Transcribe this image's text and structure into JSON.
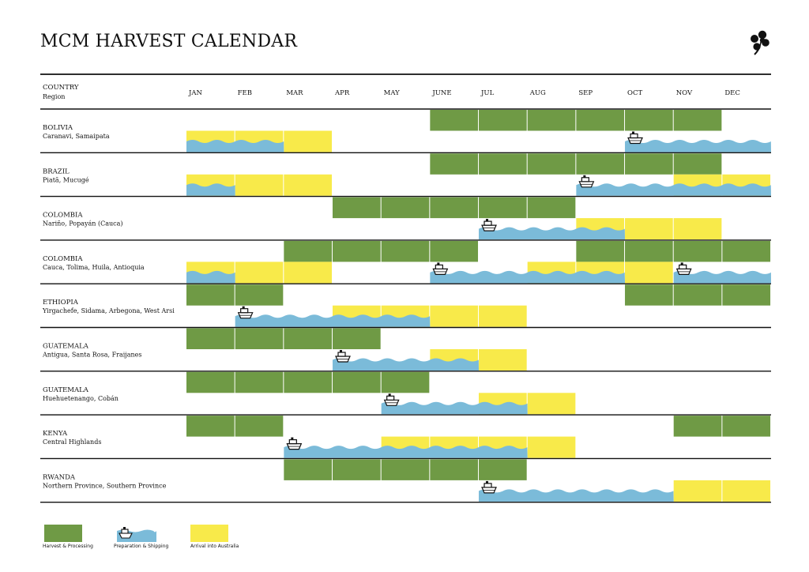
{
  "title": "MCM HARVEST CALENDAR",
  "header": {
    "country_label": "COUNTRY",
    "region_label": "Region"
  },
  "months": [
    "JAN",
    "FEB",
    "MAR",
    "APR",
    "MAY",
    "JUNE",
    "JUL",
    "AUG",
    "SEP",
    "OCT",
    "NOV",
    "DEC"
  ],
  "colors": {
    "harvest": "#6f9a45",
    "shipping": "#7bbbd9",
    "arrival": "#f8ea4a"
  },
  "legend": [
    {
      "key": "harvest",
      "label": "Harvest & Processing"
    },
    {
      "key": "shipping",
      "label": "Preparation & Shipping"
    },
    {
      "key": "arrival",
      "label": "Arrival into Australia"
    }
  ],
  "chart_data": {
    "type": "gantt",
    "title": "MCM HARVEST CALENDAR",
    "x_unit": "month",
    "rows": [
      {
        "country": "BOLIVIA",
        "region": "Caranavi, Samaipata",
        "harvest": [
          {
            "start": "JUNE",
            "end": "NOV"
          }
        ],
        "arrival": [
          {
            "start": "JAN",
            "end": "MAR"
          }
        ],
        "shipping": [
          {
            "start": "OCT",
            "end": "DEC",
            "ship": true
          },
          {
            "start": "JAN",
            "end": "FEB",
            "ship": false
          }
        ]
      },
      {
        "country": "BRAZIL",
        "region": "Piatã, Mucugé",
        "harvest": [
          {
            "start": "JUNE",
            "end": "NOV"
          }
        ],
        "arrival": [
          {
            "start": "NOV",
            "end": "DEC"
          },
          {
            "start": "JAN",
            "end": "MAR"
          }
        ],
        "shipping": [
          {
            "start": "SEP",
            "end": "DEC",
            "ship": true
          },
          {
            "start": "JAN",
            "end": "JAN",
            "ship": false
          }
        ]
      },
      {
        "country": "COLOMBIA",
        "region": "Nariño, Popayán (Cauca)",
        "harvest": [
          {
            "start": "APR",
            "end": "AUG"
          }
        ],
        "arrival": [
          {
            "start": "SEP",
            "end": "NOV"
          }
        ],
        "shipping": [
          {
            "start": "JUL",
            "end": "SEP",
            "ship": true
          }
        ]
      },
      {
        "country": "COLOMBIA",
        "region": "Cauca, Tolima, Huila, Antioquia",
        "harvest": [
          {
            "start": "MAR",
            "end": "JUNE"
          },
          {
            "start": "SEP",
            "end": "DEC"
          }
        ],
        "arrival": [
          {
            "start": "AUG",
            "end": "OCT"
          },
          {
            "start": "JAN",
            "end": "MAR"
          }
        ],
        "shipping": [
          {
            "start": "JUNE",
            "end": "SEP",
            "ship": true
          },
          {
            "start": "NOV",
            "end": "DEC",
            "ship": true
          },
          {
            "start": "JAN",
            "end": "JAN",
            "ship": false
          }
        ]
      },
      {
        "country": "ETHIOPIA",
        "region": "Yirgachefe, Sidama, Arbegona, West Arsi",
        "harvest": [
          {
            "start": "OCT",
            "end": "DEC"
          },
          {
            "start": "JAN",
            "end": "FEB"
          }
        ],
        "arrival": [
          {
            "start": "APR",
            "end": "JUL"
          }
        ],
        "shipping": [
          {
            "start": "FEB",
            "end": "MAY",
            "ship": true
          }
        ]
      },
      {
        "country": "GUATEMALA",
        "region": "Antigua, Santa Rosa, Fraijanes",
        "harvest": [
          {
            "start": "JAN",
            "end": "APR"
          }
        ],
        "arrival": [
          {
            "start": "JUNE",
            "end": "JUL"
          }
        ],
        "shipping": [
          {
            "start": "APR",
            "end": "JUNE",
            "ship": true
          }
        ]
      },
      {
        "country": "GUATEMALA",
        "region": "Huehuetenango, Cobán",
        "harvest": [
          {
            "start": "JAN",
            "end": "MAY"
          }
        ],
        "arrival": [
          {
            "start": "JUL",
            "end": "AUG"
          }
        ],
        "shipping": [
          {
            "start": "MAY",
            "end": "JUL",
            "ship": true
          }
        ]
      },
      {
        "country": "KENYA",
        "region": "Central Highlands",
        "harvest": [
          {
            "start": "NOV",
            "end": "DEC"
          },
          {
            "start": "JAN",
            "end": "FEB"
          }
        ],
        "arrival": [
          {
            "start": "MAY",
            "end": "AUG"
          }
        ],
        "shipping": [
          {
            "start": "MAR",
            "end": "JUL",
            "ship": true
          }
        ]
      },
      {
        "country": "RWANDA",
        "region": "Northern Province, Southern Province",
        "harvest": [
          {
            "start": "MAR",
            "end": "JUL"
          }
        ],
        "arrival": [
          {
            "start": "NOV",
            "end": "DEC"
          }
        ],
        "shipping": [
          {
            "start": "JUL",
            "end": "OCT",
            "ship": true
          }
        ]
      }
    ]
  }
}
